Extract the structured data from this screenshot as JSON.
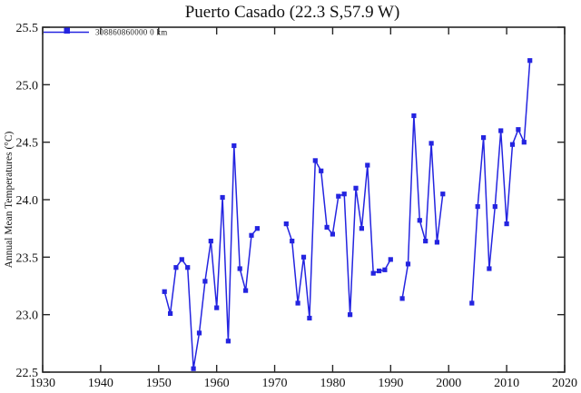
{
  "chart_data": {
    "type": "line",
    "title": "Puerto Casado (22.3 S,57.9 W)",
    "xlabel": "",
    "ylabel": "Annual Mean Temperatures (°C)",
    "xlim": [
      1930,
      2020
    ],
    "ylim": [
      22.5,
      25.5
    ],
    "x_ticks": [
      1930,
      1940,
      1950,
      1960,
      1970,
      1980,
      1990,
      2000,
      2010,
      2020
    ],
    "y_ticks": [
      22.5,
      23.0,
      23.5,
      24.0,
      24.5,
      25.0,
      25.5
    ],
    "grid": false,
    "legend_position": "top-left-inside",
    "axis_color": "#262626",
    "series": [
      {
        "name": "308860860000 0 km",
        "color": "#2424e0",
        "marker": "square",
        "note_gaps": "line breaks at missing years 1968-1971, 1991, 2000-2003",
        "points": [
          [
            1951,
            23.2
          ],
          [
            1952,
            23.01
          ],
          [
            1953,
            23.41
          ],
          [
            1954,
            23.48
          ],
          [
            1955,
            23.41
          ],
          [
            1956,
            22.53
          ],
          [
            1957,
            22.84
          ],
          [
            1958,
            23.29
          ],
          [
            1959,
            23.64
          ],
          [
            1960,
            23.06
          ],
          [
            1961,
            24.02
          ],
          [
            1962,
            22.77
          ],
          [
            1963,
            24.47
          ],
          [
            1964,
            23.4
          ],
          [
            1965,
            23.21
          ],
          [
            1966,
            23.69
          ],
          [
            1967,
            23.75
          ],
          [
            1972,
            23.79
          ],
          [
            1973,
            23.64
          ],
          [
            1974,
            23.1
          ],
          [
            1975,
            23.5
          ],
          [
            1976,
            22.97
          ],
          [
            1977,
            24.34
          ],
          [
            1978,
            24.25
          ],
          [
            1979,
            23.76
          ],
          [
            1980,
            23.7
          ],
          [
            1981,
            24.03
          ],
          [
            1982,
            24.05
          ],
          [
            1983,
            23.0
          ],
          [
            1984,
            24.1
          ],
          [
            1985,
            23.75
          ],
          [
            1986,
            24.3
          ],
          [
            1987,
            23.36
          ],
          [
            1988,
            23.38
          ],
          [
            1989,
            23.39
          ],
          [
            1990,
            23.48
          ],
          [
            1992,
            23.14
          ],
          [
            1993,
            23.44
          ],
          [
            1994,
            24.73
          ],
          [
            1995,
            23.82
          ],
          [
            1996,
            23.64
          ],
          [
            1997,
            24.49
          ],
          [
            1998,
            23.63
          ],
          [
            1999,
            24.05
          ],
          [
            2004,
            23.1
          ],
          [
            2005,
            23.94
          ],
          [
            2006,
            24.54
          ],
          [
            2007,
            23.4
          ],
          [
            2008,
            23.94
          ],
          [
            2009,
            24.6
          ],
          [
            2010,
            23.79
          ],
          [
            2011,
            24.48
          ],
          [
            2012,
            24.61
          ],
          [
            2013,
            24.5
          ],
          [
            2014,
            25.21
          ]
        ]
      }
    ]
  }
}
